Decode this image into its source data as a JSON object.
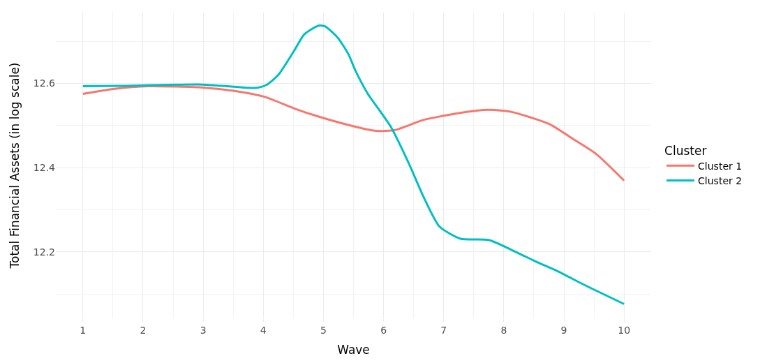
{
  "chart_data": {
    "type": "line",
    "xlabel": "Wave",
    "ylabel": "Total Financial Assets (in log scale)",
    "legend_title": "Cluster",
    "legend": "right",
    "grid": true,
    "marker": "none",
    "line_style": "solid",
    "xlim": [
      0.55,
      10.45
    ],
    "xticks": [
      1,
      2,
      3,
      4,
      5,
      6,
      7,
      8,
      9,
      10
    ],
    "ylim": [
      12.042,
      12.768
    ],
    "yticks": [
      12.2,
      12.4,
      12.6
    ],
    "series": [
      {
        "name": "Cluster 1",
        "color": "#f8766d",
        "x": [
          1,
          1.53,
          2.08,
          3.0,
          3.52,
          4.02,
          4.52,
          4.92,
          5.53,
          5.88,
          6.19,
          6.66,
          7.24,
          7.75,
          8.13,
          8.76,
          9.15,
          9.53,
          10
        ],
        "values": [
          12.575,
          12.587,
          12.593,
          12.59,
          12.582,
          12.568,
          12.54,
          12.521,
          12.497,
          12.487,
          12.489,
          12.513,
          12.529,
          12.537,
          12.532,
          12.503,
          12.468,
          12.433,
          12.369
        ]
      },
      {
        "name": "Cluster 2",
        "color": "#00bfc4",
        "x": [
          1,
          1.6,
          3.0,
          3.87,
          4.05,
          4.25,
          4.52,
          4.68,
          4.92,
          5.03,
          5.24,
          5.42,
          5.53,
          5.73,
          6.12,
          6.43,
          6.66,
          6.93,
          7.28,
          7.75,
          8.21,
          8.53,
          8.91,
          9.3,
          10
        ],
        "values": [
          12.593,
          12.594,
          12.597,
          12.589,
          12.596,
          12.62,
          12.679,
          12.716,
          12.737,
          12.735,
          12.708,
          12.668,
          12.631,
          12.577,
          12.497,
          12.407,
          12.332,
          12.26,
          12.231,
          12.228,
          12.199,
          12.177,
          12.153,
          12.124,
          12.076
        ]
      }
    ]
  }
}
